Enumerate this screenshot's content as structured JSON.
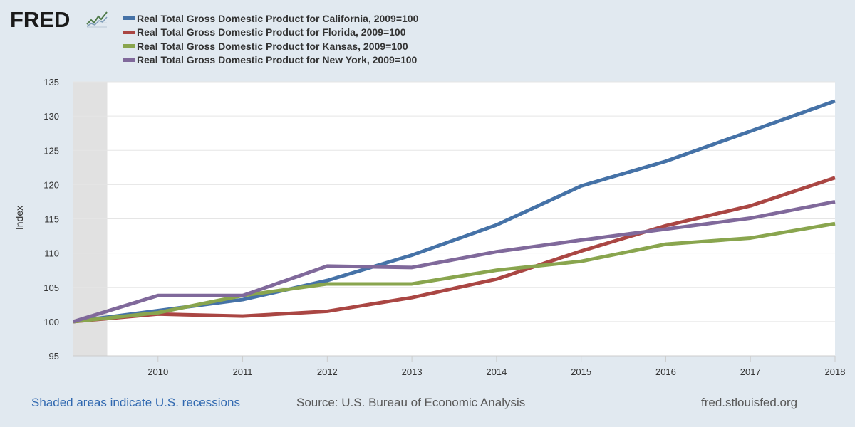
{
  "brand": {
    "logo_text": "FRED",
    "logo_icon": "line-chart-icon"
  },
  "footer": {
    "recessions_note": "Shaded areas indicate U.S. recessions",
    "source": "Source: U.S. Bureau of Economic Analysis",
    "url": "fred.stlouisfed.org"
  },
  "colors": {
    "background": "#e1e9f0",
    "plot_background": "#ffffff",
    "recession_shade": "#e1e1e1",
    "grid": "#e5e5e5",
    "link": "#3068b0"
  },
  "chart_data": {
    "type": "line",
    "ylabel": "Index",
    "ylim": [
      95,
      135
    ],
    "yticks": [
      95,
      100,
      105,
      110,
      115,
      120,
      125,
      130,
      135
    ],
    "xlim": [
      2009,
      2018
    ],
    "xticks": [
      "2010",
      "2011",
      "2012",
      "2013",
      "2014",
      "2015",
      "2016",
      "2017",
      "2018"
    ],
    "x": [
      2009,
      2010,
      2011,
      2012,
      2013,
      2014,
      2015,
      2016,
      2017,
      2018
    ],
    "grid": true,
    "legend_position": "top",
    "recession_shading": [
      {
        "start": 2009,
        "end": 2009.4
      }
    ],
    "series": [
      {
        "name": "Real Total Gross Domestic Product for California, 2009=100",
        "color": "#4572a7",
        "values": [
          100,
          101.6,
          103.2,
          106.0,
          109.7,
          114.1,
          119.8,
          123.4,
          127.8,
          132.2
        ]
      },
      {
        "name": "Real Total Gross Domestic Product for Florida, 2009=100",
        "color": "#aa4643",
        "values": [
          100,
          101.1,
          100.8,
          101.5,
          103.5,
          106.2,
          110.3,
          114.0,
          116.9,
          121.0
        ]
      },
      {
        "name": "Real Total Gross Domestic Product for Kansas, 2009=100",
        "color": "#89a54e",
        "values": [
          100,
          101.3,
          103.8,
          105.5,
          105.5,
          107.5,
          108.8,
          111.3,
          112.2,
          114.3
        ]
      },
      {
        "name": "Real Total Gross Domestic Product for New York, 2009=100",
        "color": "#80699b",
        "values": [
          100,
          103.8,
          103.8,
          108.1,
          107.9,
          110.2,
          111.9,
          113.5,
          115.1,
          117.5
        ]
      }
    ]
  }
}
